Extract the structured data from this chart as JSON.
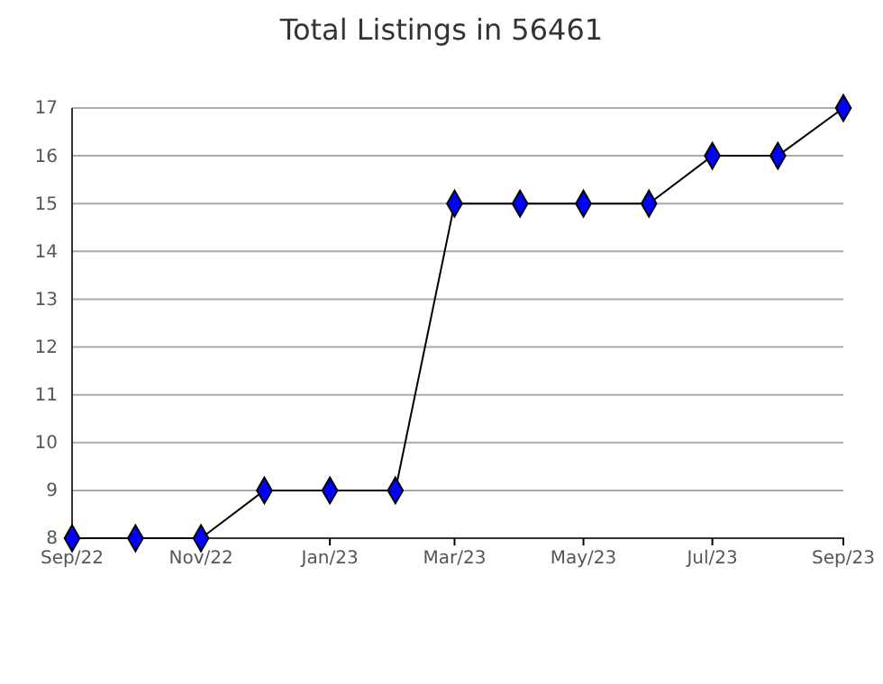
{
  "chart_data": {
    "type": "line",
    "title": "Total Listings in 56461",
    "x": [
      "2022-09",
      "2022-10",
      "2022-11",
      "2022-12",
      "2023-01",
      "2023-02",
      "2023-03",
      "2023-04",
      "2023-05",
      "2023-06",
      "2023-07",
      "2023-08",
      "2023-09"
    ],
    "series": [
      {
        "color": "#0000ff",
        "values": [
          8,
          8,
          8,
          9,
          9,
          9,
          15,
          15,
          15,
          15,
          16,
          16,
          17
        ]
      }
    ],
    "xlim": [
      "2022-09",
      "2023-09"
    ],
    "xticks": [
      {
        "value": "2022-09",
        "label": "Sep/22"
      },
      {
        "value": "2022-11",
        "label": "Nov/22"
      },
      {
        "value": "2023-01",
        "label": "Jan/23"
      },
      {
        "value": "2023-03",
        "label": "Mar/23"
      },
      {
        "value": "2023-05",
        "label": "May/23"
      },
      {
        "value": "2023-07",
        "label": "Jul/23"
      },
      {
        "value": "2023-09",
        "label": "Sep/23"
      }
    ],
    "ylim": [
      8,
      17
    ],
    "yticks": [
      8,
      9,
      10,
      11,
      12,
      13,
      14,
      15,
      16,
      17
    ],
    "grid": "y",
    "marker": "diamond",
    "line_style": "solid"
  }
}
